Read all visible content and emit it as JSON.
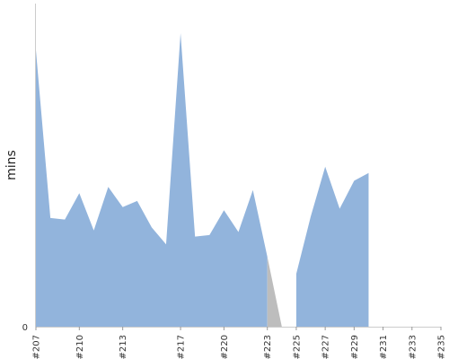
{
  "chart_data": {
    "type": "area",
    "title": "",
    "xlabel": "",
    "ylabel": "mins",
    "categories": [
      "#207",
      "#208",
      "#209",
      "#210",
      "#211",
      "#212",
      "#213",
      "#214",
      "#215",
      "#216",
      "#217",
      "#218",
      "#219",
      "#220",
      "#221",
      "#222",
      "#223",
      "#224",
      "#225",
      "#226",
      "#227",
      "#228",
      "#229",
      "#230",
      "#231",
      "#232",
      "#233",
      "#234",
      "#235"
    ],
    "x_tick_labels": [
      "#207",
      "#210",
      "#213",
      "#217",
      "#220",
      "#223",
      "#225",
      "#227",
      "#229",
      "#231",
      "#233",
      "#235"
    ],
    "y_tick_labels": [
      "0"
    ],
    "ylim": [
      0,
      100
    ],
    "grid": false,
    "legend": "none",
    "segments": [
      {
        "status": "passed",
        "color": "#92b4dc",
        "start": 0,
        "values": [
          89,
          35,
          34.5,
          43,
          31,
          45,
          38.5,
          40.5,
          32,
          26.5,
          94.5,
          29,
          29.5,
          37.5,
          30.5,
          44,
          22.5
        ]
      },
      {
        "status": "failed",
        "color": "#bdbdbd",
        "start": 16,
        "values": [
          22.5,
          0
        ]
      },
      {
        "status": "failed",
        "color": "#bdbdbd",
        "start": 17,
        "values": [
          0,
          0
        ]
      },
      {
        "status": "failed",
        "color": "#bdbdbd",
        "start": 18,
        "values": [
          0,
          17
        ]
      },
      {
        "status": "passed",
        "color": "#92b4dc",
        "start": 18,
        "values": [
          17,
          35.5,
          51.5,
          38,
          47,
          49.5
        ]
      }
    ],
    "axis_color": "#cccccc"
  }
}
